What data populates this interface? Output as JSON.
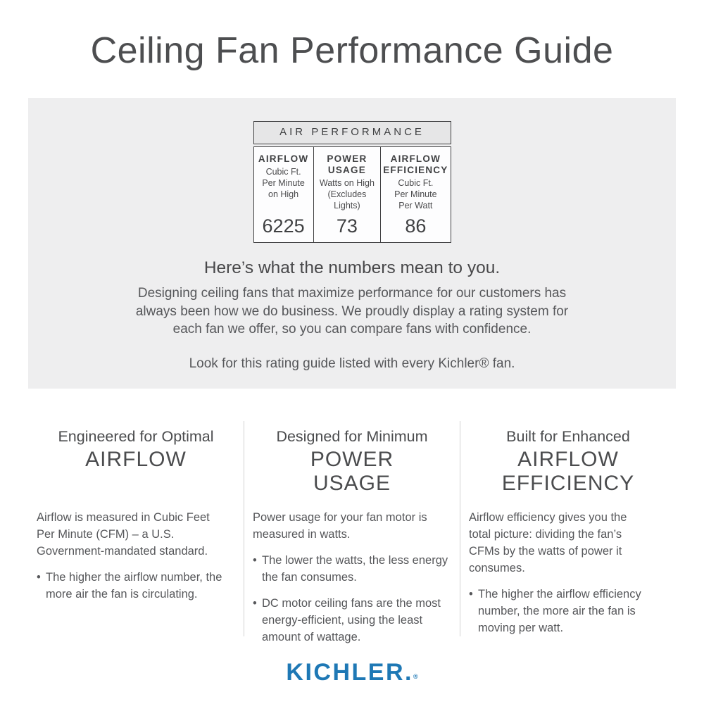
{
  "header": {
    "title": "Ceiling Fan Performance Guide"
  },
  "rating_card": {
    "header": "AIR PERFORMANCE",
    "metrics": [
      {
        "label": "AIRFLOW",
        "sublabel": "Cubic Ft.\nPer Minute\non High",
        "value": "6225"
      },
      {
        "label": "POWER\nUSAGE",
        "sublabel": "Watts on High\n(Excludes\nLights)",
        "value": "73"
      },
      {
        "label": "AIRFLOW\nEFFICIENCY",
        "sublabel": "Cubic Ft.\nPer Minute\nPer Watt",
        "value": "86"
      }
    ]
  },
  "explainer": {
    "heading": "Here’s what the numbers mean to you.",
    "body": "Designing ceiling fans that maximize performance for our customers has\nalways been how we do business. We proudly display a rating system for\neach fan we offer, so you can compare fans with confidence.",
    "note": "Look for this rating guide listed with every Kichler® fan."
  },
  "features": [
    {
      "eyebrow": "Engineered for Optimal",
      "title": "AIRFLOW",
      "description": "Airflow is measured in Cubic Feet\nPer Minute (CFM) – a U.S.\nGovernment-mandated standard.",
      "bullets": [
        "The higher the airflow number, the\nmore air the fan is circulating."
      ]
    },
    {
      "eyebrow": "Designed for Minimum",
      "title": "POWER\nUSAGE",
      "description": "Power usage for your fan motor is\nmeasured in watts.",
      "bullets": [
        "The lower the watts, the less energy\nthe fan consumes.",
        "DC motor ceiling fans are the most\nenergy-efficient, using the least\namount of wattage."
      ]
    },
    {
      "eyebrow": "Built for Enhanced",
      "title": "AIRFLOW\nEFFICIENCY",
      "description": "Airflow efficiency gives you the\ntotal picture: dividing the fan’s\nCFMs by the watts of power it\nconsumes.",
      "bullets": [
        "The higher the airflow efficiency\nnumber, the more air the fan is\nmoving per watt."
      ]
    }
  ],
  "footer": {
    "logo": "KICHLER.",
    "registered_mark": "®"
  },
  "ui": {
    "bullet_char": "•"
  },
  "colors": {
    "brand_blue": "#1e78b5",
    "panel_gray": "#eeeeef",
    "card_header_gray": "#e6e6e7",
    "card_border_dark": "#3f3f41",
    "text_dark": "#414042",
    "text_gray": "#56575a",
    "column_divider_gray": "#d2d2d3"
  }
}
